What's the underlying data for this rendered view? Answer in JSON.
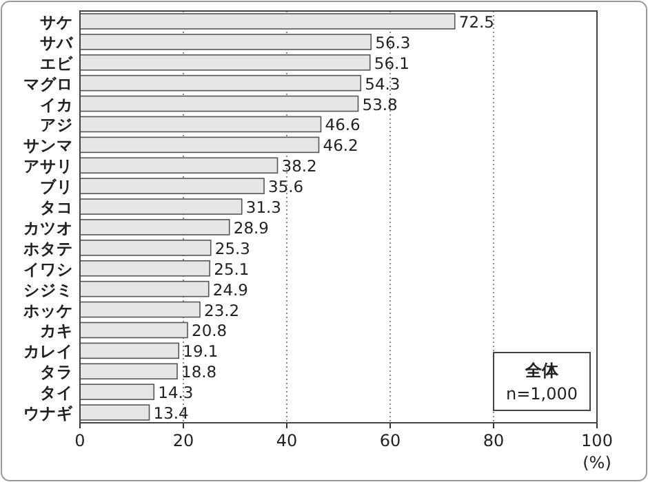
{
  "chart_data": {
    "type": "bar",
    "orientation": "horizontal",
    "categories": [
      "サケ",
      "サバ",
      "エビ",
      "マグロ",
      "イカ",
      "アジ",
      "サンマ",
      "アサリ",
      "ブリ",
      "タコ",
      "カツオ",
      "ホタテ",
      "イワシ",
      "シジミ",
      "ホッケ",
      "カキ",
      "カレイ",
      "タラ",
      "タイ",
      "ウナギ"
    ],
    "values": [
      72.5,
      56.3,
      56.1,
      54.3,
      53.8,
      46.6,
      46.2,
      38.2,
      35.6,
      31.3,
      28.9,
      25.3,
      25.1,
      24.9,
      23.2,
      20.8,
      19.1,
      18.8,
      14.3,
      13.4
    ],
    "color": "#e6e6e6",
    "xlim": [
      0,
      100
    ],
    "xticks": [
      0,
      20,
      40,
      60,
      80,
      100
    ],
    "xlabel": "(%)",
    "grid": "x",
    "data_labels": true,
    "annotations": [
      "全体",
      "n=1,000"
    ]
  }
}
